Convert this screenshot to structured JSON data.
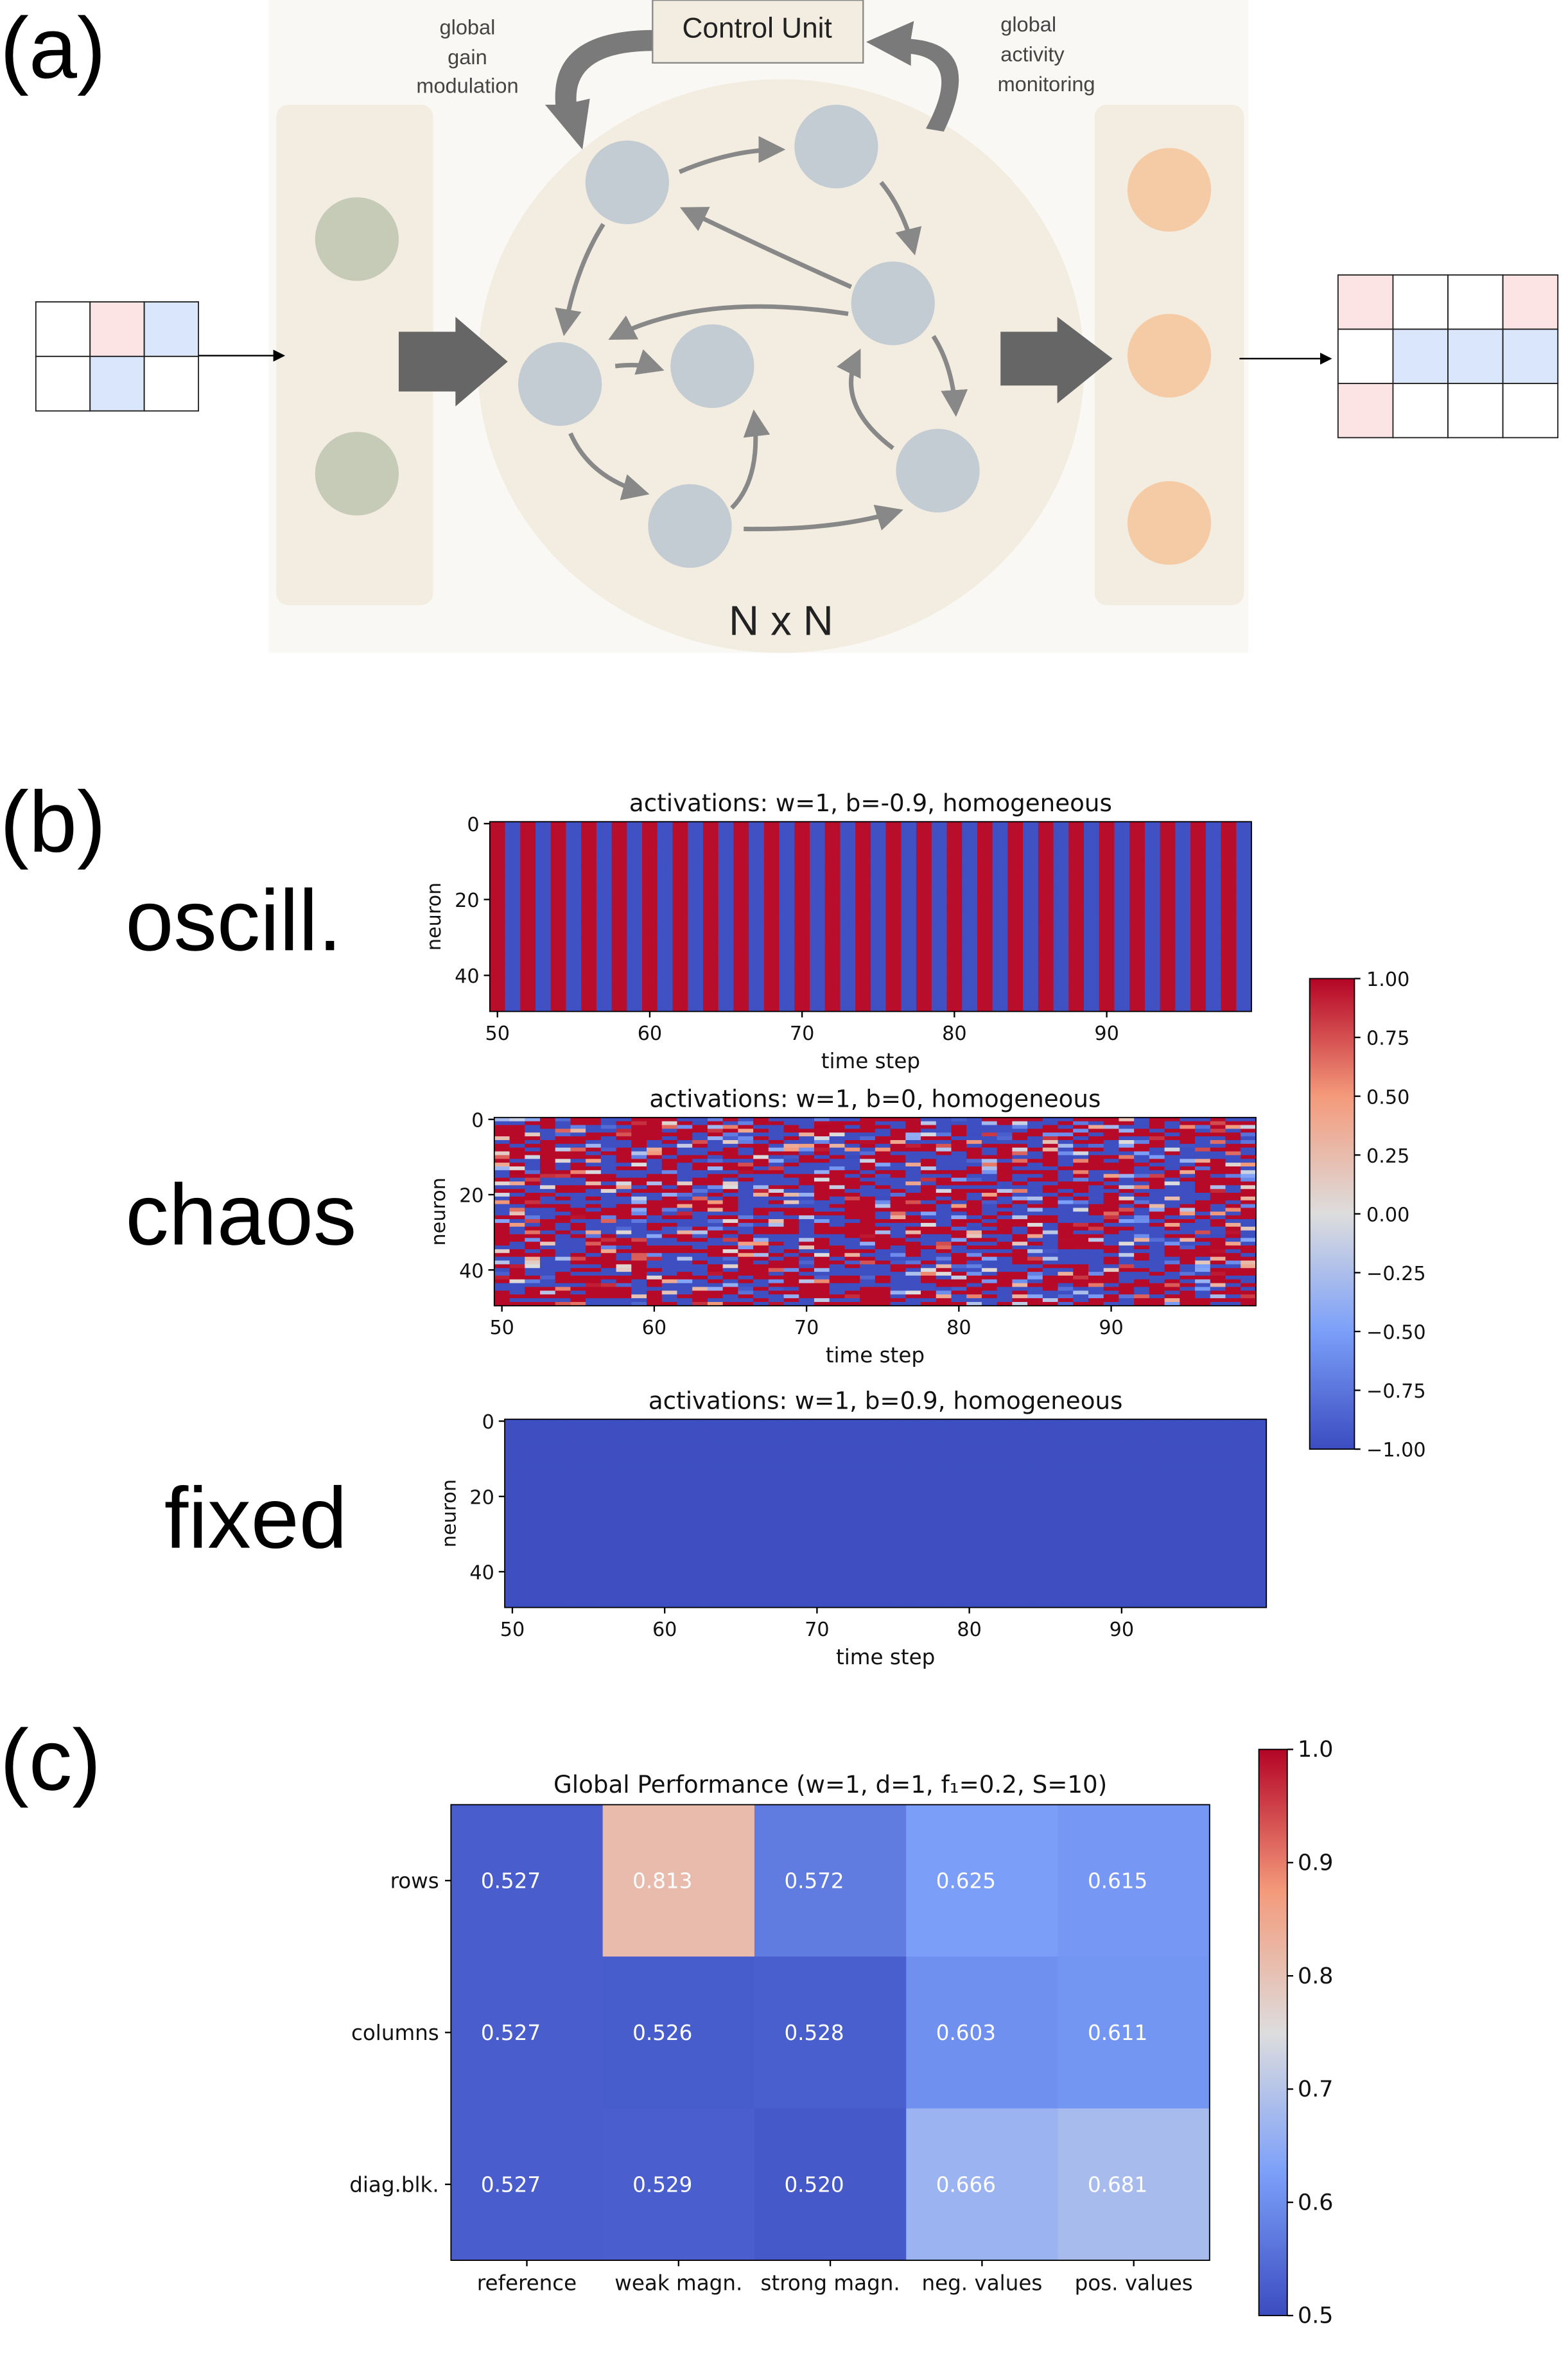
{
  "panel_a": {
    "label": "(a)",
    "control_unit": "Control Unit",
    "left_annotation": [
      "global",
      "gain",
      "modulation"
    ],
    "right_annotation": [
      "global",
      "activity",
      "monitoring"
    ],
    "reservoir_label": "N x N",
    "colors": {
      "input_node": "#c5cbb6",
      "reservoir_node": "#c2ccd2",
      "output_node": "#f5cba6",
      "background": "#f3ece0",
      "pink": "#fce4e4",
      "blue": "#dae6fc",
      "arrow": "#6b6b6b"
    },
    "input_grid": [
      [
        "white",
        "pink",
        "blue"
      ],
      [
        "white",
        "blue",
        "white"
      ]
    ],
    "output_grid": [
      [
        "pink",
        "white",
        "white",
        "pink"
      ],
      [
        "white",
        "blue",
        "blue",
        "blue"
      ],
      [
        "pink",
        "white",
        "white",
        "white"
      ]
    ]
  },
  "panel_b": {
    "label": "(b)",
    "regimes": [
      "oscill.",
      "chaos",
      "fixed"
    ],
    "colorbar": {
      "ticks": [
        "1.00",
        "0.75",
        "0.50",
        "0.25",
        "0.00",
        "−0.25",
        "−0.50",
        "−0.75",
        "−1.00"
      ],
      "range": [
        -1,
        1
      ],
      "colormap": "coolwarm"
    }
  },
  "panel_c": {
    "label": "(c)",
    "colorbar": {
      "ticks": [
        "1.0",
        "0.9",
        "0.8",
        "0.7",
        "0.6",
        "0.5"
      ],
      "range": [
        0.5,
        1.0
      ],
      "colormap": "coolwarm"
    }
  },
  "chart_data": [
    {
      "type": "heatmap",
      "title": "activations:  w=1, b=-0.9, homogeneous",
      "xlabel": "time step",
      "ylabel": "neuron",
      "xlim": [
        50,
        99
      ],
      "ylim": [
        0,
        49
      ],
      "xticks": [
        "50",
        "60",
        "70",
        "80",
        "90"
      ],
      "yticks": [
        "0",
        "20",
        "40"
      ],
      "pattern": "oscillating",
      "vrange": [
        -1,
        1
      ]
    },
    {
      "type": "heatmap",
      "title": "activations:  w=1, b=0, homogeneous",
      "xlabel": "time step",
      "ylabel": "neuron",
      "xlim": [
        50,
        99
      ],
      "ylim": [
        0,
        49
      ],
      "xticks": [
        "50",
        "60",
        "70",
        "80",
        "90"
      ],
      "yticks": [
        "0",
        "20",
        "40"
      ],
      "pattern": "chaotic",
      "vrange": [
        -1,
        1
      ]
    },
    {
      "type": "heatmap",
      "title": "activations:  w=1, b=0.9, homogeneous",
      "xlabel": "time step",
      "ylabel": "neuron",
      "xlim": [
        50,
        99
      ],
      "ylim": [
        0,
        49
      ],
      "xticks": [
        "50",
        "60",
        "70",
        "80",
        "90"
      ],
      "yticks": [
        "0",
        "20",
        "40"
      ],
      "pattern": "fixed",
      "value": -0.98,
      "vrange": [
        -1,
        1
      ]
    },
    {
      "type": "heatmap",
      "title": "Global Performance (w=1, d=1, f₁=0.2, S=10)",
      "categories": [
        "reference",
        "weak magn.",
        "strong magn.",
        "neg. values",
        "pos. values"
      ],
      "rows": [
        "rows",
        "columns",
        "diag.blk."
      ],
      "values": [
        [
          0.527,
          0.813,
          0.572,
          0.625,
          0.615
        ],
        [
          0.527,
          0.526,
          0.528,
          0.603,
          0.611
        ],
        [
          0.527,
          0.529,
          0.52,
          0.666,
          0.681
        ]
      ],
      "labels": [
        [
          "0.527",
          "0.813",
          "0.572",
          "0.625",
          "0.615"
        ],
        [
          "0.527",
          "0.526",
          "0.528",
          "0.603",
          "0.611"
        ],
        [
          "0.527",
          "0.529",
          "0.520",
          "0.666",
          "0.681"
        ]
      ],
      "vrange": [
        0.5,
        1.0
      ]
    }
  ]
}
